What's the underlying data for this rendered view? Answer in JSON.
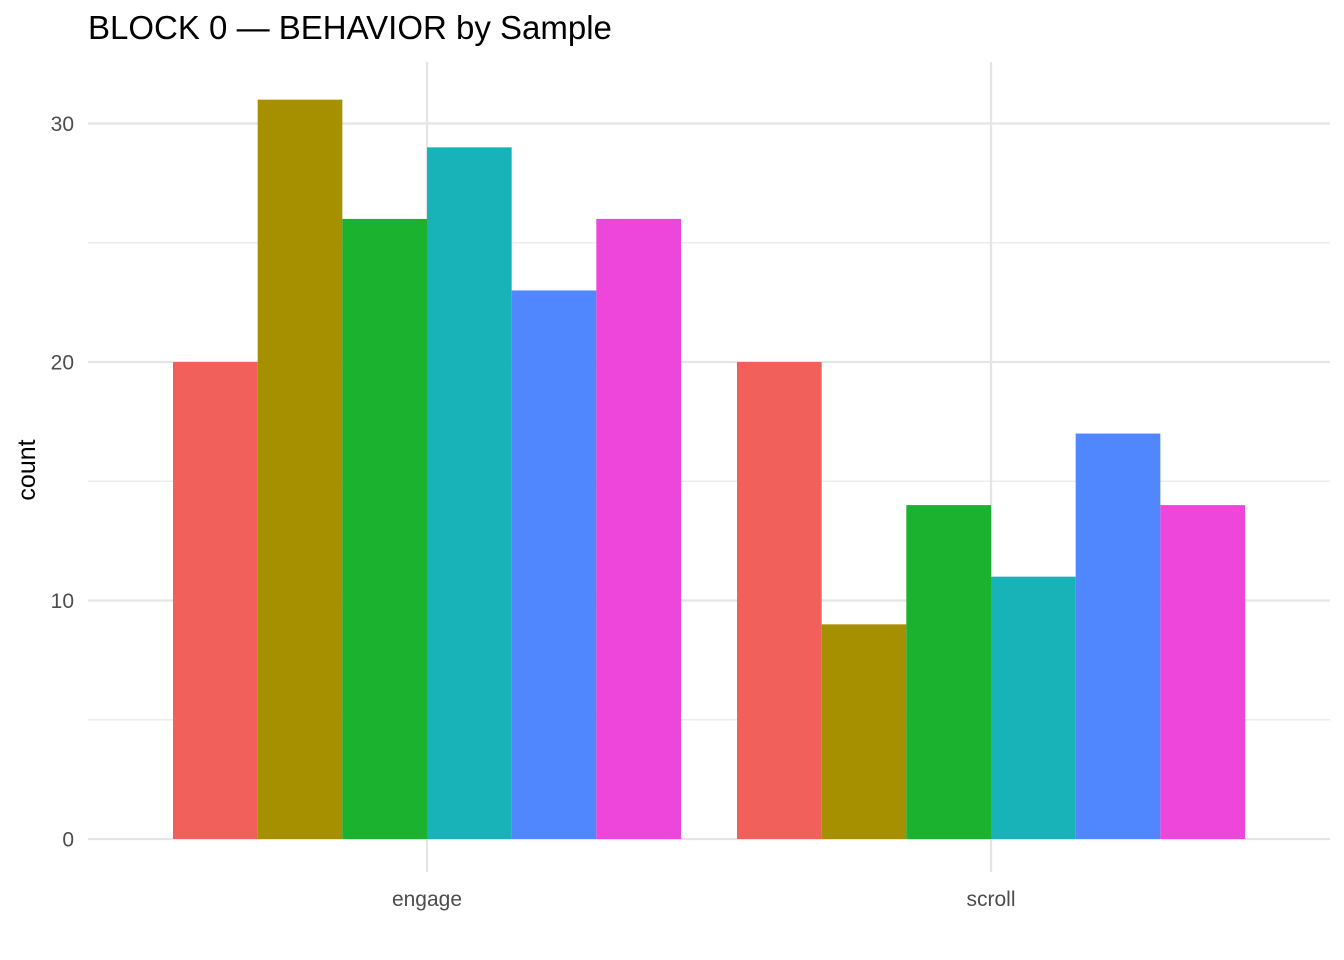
{
  "chart_data": {
    "type": "bar",
    "title": "BLOCK 0 — BEHAVIOR by Sample",
    "xlabel": "",
    "ylabel": "count",
    "categories": [
      "engage",
      "scroll"
    ],
    "series": [
      {
        "values": [
          20,
          20
        ],
        "color": "#F2605B"
      },
      {
        "values": [
          31,
          9
        ],
        "color": "#A69000"
      },
      {
        "values": [
          26,
          14
        ],
        "color": "#1BB22F"
      },
      {
        "values": [
          29,
          11
        ],
        "color": "#18B3B8"
      },
      {
        "values": [
          23,
          17
        ],
        "color": "#5087FF"
      },
      {
        "values": [
          26,
          14
        ],
        "color": "#EE45DA"
      }
    ],
    "ylim": [
      0,
      32
    ],
    "yticks": [
      0,
      10,
      20,
      30
    ],
    "grid": true,
    "legend": "none"
  }
}
